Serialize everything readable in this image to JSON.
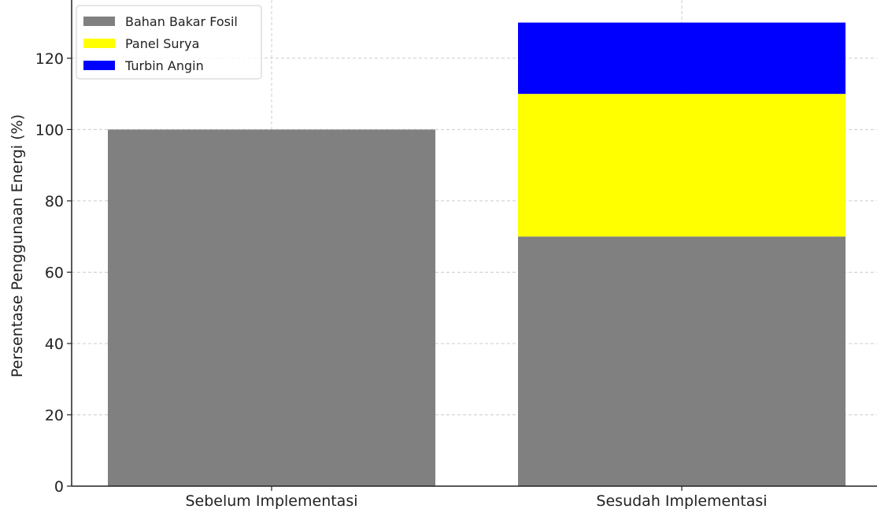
{
  "chart_data": {
    "type": "bar",
    "stacked": true,
    "title": "",
    "xlabel": "",
    "ylabel": "Persentase Penggunaan Energi (%)",
    "categories": [
      "Sebelum Implementasi",
      "Sesudah Implementasi"
    ],
    "series": [
      {
        "name": "Bahan Bakar Fosil",
        "color": "#808080",
        "values": [
          100,
          70
        ]
      },
      {
        "name": "Panel Surya",
        "color": "#ffff00",
        "values": [
          0,
          40
        ]
      },
      {
        "name": "Turbin Angin",
        "color": "#0000ff",
        "values": [
          0,
          20
        ]
      }
    ],
    "ylim": [
      0,
      135
    ],
    "yticks": [
      0,
      20,
      40,
      60,
      80,
      100,
      120
    ],
    "grid": true,
    "legend_position": "top-left"
  }
}
